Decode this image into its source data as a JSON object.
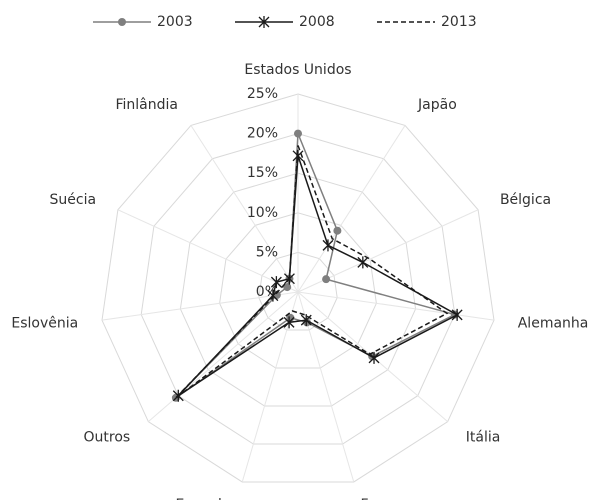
{
  "chart_data": {
    "type": "radar",
    "categories": [
      "Estados Unidos",
      "Japão",
      "Bélgica",
      "Alemanha",
      "Itália",
      "França",
      "Espanha",
      "Outros",
      "Eslovênia",
      "Suécia",
      "Finlândia"
    ],
    "series": [
      {
        "name": "2003",
        "color": "#7f7f7f",
        "marker": "circle",
        "dash": "solid",
        "values": [
          20,
          9.2,
          3.9,
          20,
          12.4,
          4,
          3.4,
          20.4,
          2.7,
          1.5,
          2
        ]
      },
      {
        "name": "2008",
        "color": "#1a1a1a",
        "marker": "star",
        "dash": "solid",
        "values": [
          17.2,
          7,
          9,
          20.3,
          12.7,
          3.7,
          4,
          20,
          3.2,
          3,
          2
        ]
      },
      {
        "name": "2013",
        "color": "#1a1a1a",
        "marker": "none",
        "dash": "dashed",
        "values": [
          18.5,
          8,
          10,
          19,
          12,
          3,
          2.5,
          20.5,
          3,
          2,
          2
        ]
      }
    ],
    "ylim": [
      0,
      25
    ],
    "yticks": [
      {
        "value": 0,
        "label": "0%"
      },
      {
        "value": 5,
        "label": "5%"
      },
      {
        "value": 10,
        "label": "10%"
      },
      {
        "value": 15,
        "label": "15%"
      },
      {
        "value": 20,
        "label": "20%"
      },
      {
        "value": 25,
        "label": "25%"
      }
    ],
    "grid": true,
    "legend": "top"
  }
}
